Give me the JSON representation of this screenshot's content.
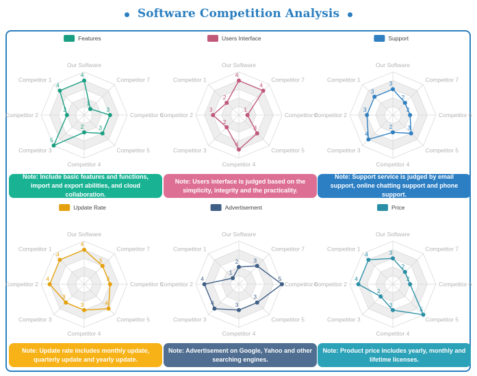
{
  "title": "Software Competition Analysis",
  "colors": {
    "accent": "#2b7fc0",
    "grid_band": "#eeeeee",
    "grid_line": "#d9d9d9",
    "axis_label": "#b3b3b3"
  },
  "chart_data": [
    {
      "type": "radar",
      "series_name": "Features",
      "color": "#1a9e82",
      "note_color": "#19b394",
      "axes": [
        "Our Software",
        "Competitor 7",
        "Competitor 6",
        "Competitor 5",
        "Competitor 4",
        "Competitor 3",
        "Competitor 2",
        "Competitor 1"
      ],
      "values": [
        4,
        1,
        3,
        3,
        2,
        5,
        2,
        4
      ],
      "rmax": 5,
      "note": "Note: Include basic features and functions, import and export abilities, and cloud collaboration."
    },
    {
      "type": "radar",
      "series_name": "Users Interface",
      "color": "#c0587a",
      "note_color": "#dd6f94",
      "axes": [
        "Our Software",
        "Competitor 7",
        "Competitor 6",
        "Competitor 5",
        "Competitor 4",
        "Competitor 3",
        "Competitor 2",
        "Competitor 1"
      ],
      "values": [
        4,
        4,
        1,
        3,
        4,
        2,
        3,
        2
      ],
      "rmax": 5,
      "note": "Note: Users interface is judged based on the simplicity,  integrity and the practicality."
    },
    {
      "type": "radar",
      "series_name": "Support",
      "color": "#2f7fc1",
      "note_color": "#2d7fc4",
      "axes": [
        "Our Software",
        "Competitor 7",
        "Competitor 6",
        "Competitor 5",
        "Competitor 4",
        "Competitor 3",
        "Competitor 2",
        "Competitor 1"
      ],
      "values": [
        3,
        2,
        2,
        3,
        2,
        4,
        3,
        3
      ],
      "rmax": 5,
      "note": "Note: Support service is judged by email support, online chatting support and phone support."
    },
    {
      "type": "radar",
      "series_name": "Update Rate",
      "color": "#e5a00d",
      "note_color": "#f7b217",
      "axes": [
        "Our Software",
        "Competitor 7",
        "Competitor 6",
        "Competitor 5",
        "Competitor 4",
        "Competitor 3",
        "Competitor 2",
        "Competitor 1"
      ],
      "values": [
        4,
        3,
        3,
        4,
        3,
        3,
        4,
        4
      ],
      "rmax": 5,
      "note": "Note: Update rate includes monthly update, quarterly update and yearly update."
    },
    {
      "type": "radar",
      "series_name": "Advertisement",
      "color": "#3f5f86",
      "note_color": "#4f6e91",
      "axes": [
        "Our Software",
        "Competitor 7",
        "Competitor 6",
        "Competitor 5",
        "Competitor 4",
        "Competitor 3",
        "Competitor 2",
        "Competitor 1"
      ],
      "values": [
        2,
        3,
        5,
        3,
        3,
        4,
        4,
        1
      ],
      "rmax": 5,
      "note": "Note: Advertisement on Google, Yahoo and other searching engines."
    },
    {
      "type": "radar",
      "series_name": "Price",
      "color": "#2a8fa6",
      "note_color": "#2ca2b8",
      "axes": [
        "Our Software",
        "Competitor 7",
        "Competitor 6",
        "Competitor 5",
        "Competitor 4",
        "Competitor 3",
        "Competitor 2",
        "Competitor 1"
      ],
      "values": [
        3,
        2,
        2,
        5,
        3,
        2,
        4,
        4
      ],
      "rmax": 5,
      "note": "Note: Product price includes yearly, monthly and lifetime licenses."
    }
  ]
}
